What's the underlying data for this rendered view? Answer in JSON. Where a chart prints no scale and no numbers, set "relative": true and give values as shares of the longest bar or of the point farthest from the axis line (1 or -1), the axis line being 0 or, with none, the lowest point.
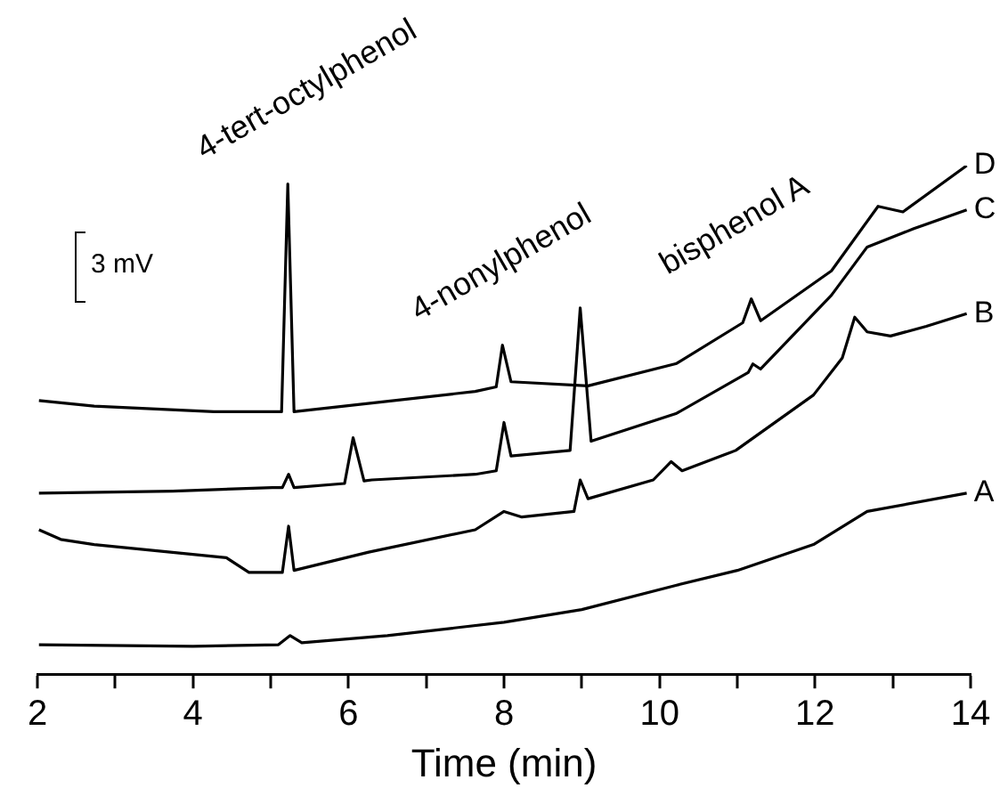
{
  "chart_data": {
    "type": "line",
    "xlabel": "Time (min)",
    "relative": true,
    "legend": false,
    "grid": false,
    "marker": "none",
    "line_style": "solid",
    "xlim": [
      2,
      14
    ],
    "xticks": [
      2,
      {
        "value": 3,
        "label": null
      },
      4,
      {
        "value": 5,
        "label": null
      },
      6,
      {
        "value": 7,
        "label": null
      },
      8,
      {
        "value": 9,
        "label": null
      },
      10,
      {
        "value": 11,
        "label": null
      },
      12,
      {
        "value": 13,
        "label": null
      },
      14
    ],
    "annotations": [
      {
        "text": "4-tert-octylphenol",
        "x": 5.22,
        "y": 0.964
      },
      {
        "text": "4-nonylphenol",
        "x": 7.98,
        "y": 0.647
      },
      {
        "text": "bisphenol A",
        "x": 11.18,
        "y": 0.738
      },
      "3 mV"
    ],
    "series": [
      {
        "name": "A",
        "color": "#000000",
        "x": [
          2.02,
          4.0,
          5.1,
          5.25,
          5.4,
          6.5,
          8.0,
          9.0,
          10.22,
          11.0,
          11.98,
          12.67,
          13.95
        ],
        "values": [
          0.058,
          0.055,
          0.058,
          0.076,
          0.062,
          0.076,
          0.102,
          0.127,
          0.175,
          0.204,
          0.255,
          0.32,
          0.356
        ]
      },
      {
        "name": "B",
        "color": "#000000",
        "x": [
          2.02,
          2.3,
          2.73,
          4.43,
          4.72,
          5.02,
          5.15,
          5.23,
          5.3,
          6.26,
          7.63,
          8.0,
          8.23,
          8.9,
          8.98,
          9.08,
          9.92,
          10.15,
          10.29,
          10.98,
          11.98,
          12.35,
          12.51,
          12.67,
          12.97,
          13.43,
          13.95
        ],
        "values": [
          0.284,
          0.265,
          0.255,
          0.229,
          0.2,
          0.2,
          0.2,
          0.291,
          0.204,
          0.24,
          0.284,
          0.32,
          0.309,
          0.32,
          0.382,
          0.345,
          0.382,
          0.418,
          0.4,
          0.44,
          0.549,
          0.622,
          0.702,
          0.673,
          0.665,
          0.684,
          0.709
        ]
      },
      {
        "name": "C",
        "color": "#000000",
        "x": [
          2.02,
          3.74,
          5.02,
          5.15,
          5.23,
          5.3,
          5.95,
          6.06,
          6.2,
          6.3,
          7.63,
          7.9,
          8.0,
          8.09,
          8.85,
          8.98,
          9.12,
          10.22,
          11.14,
          11.2,
          11.3,
          12.21,
          12.67,
          13.27,
          13.95
        ],
        "values": [
          0.356,
          0.36,
          0.367,
          0.367,
          0.393,
          0.367,
          0.375,
          0.465,
          0.38,
          0.382,
          0.393,
          0.4,
          0.495,
          0.429,
          0.44,
          0.72,
          0.458,
          0.513,
          0.593,
          0.61,
          0.6,
          0.745,
          0.84,
          0.876,
          0.913
        ]
      },
      {
        "name": "D",
        "color": "#000000",
        "x": [
          2.02,
          2.73,
          4.27,
          5.14,
          5.22,
          5.3,
          7.63,
          7.9,
          7.98,
          8.09,
          9.08,
          10.22,
          11.07,
          11.18,
          11.3,
          12.21,
          12.81,
          13.13,
          13.95
        ],
        "values": [
          0.538,
          0.527,
          0.516,
          0.516,
          0.964,
          0.516,
          0.556,
          0.565,
          0.647,
          0.575,
          0.567,
          0.611,
          0.691,
          0.738,
          0.695,
          0.793,
          0.92,
          0.909,
          1
        ]
      }
    ]
  }
}
